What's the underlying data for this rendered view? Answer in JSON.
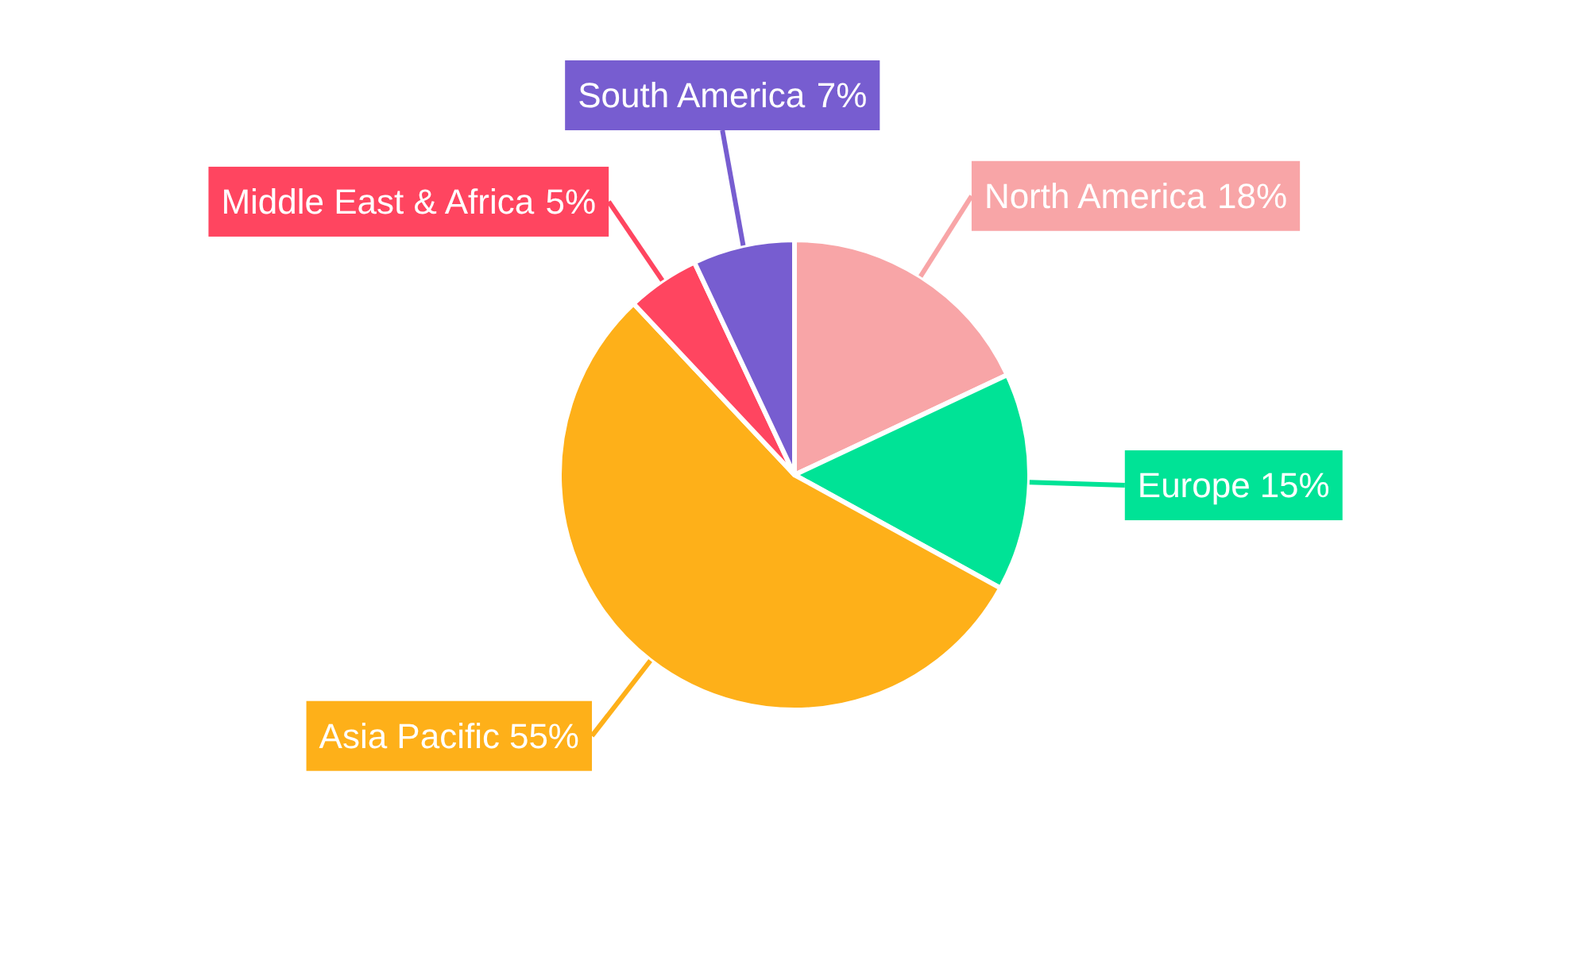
{
  "chart_data": {
    "type": "pie",
    "categories": [
      "North America",
      "Europe",
      "Asia Pacific",
      "Middle East & Africa",
      "South America"
    ],
    "values": [
      18,
      15,
      55,
      5,
      7
    ],
    "value_labels": [
      "18%",
      "15%",
      "55%",
      "5%",
      "7%"
    ],
    "colors": [
      "#f8a5a7",
      "#00e396",
      "#feb019",
      "#ff4560",
      "#775dd0"
    ]
  }
}
